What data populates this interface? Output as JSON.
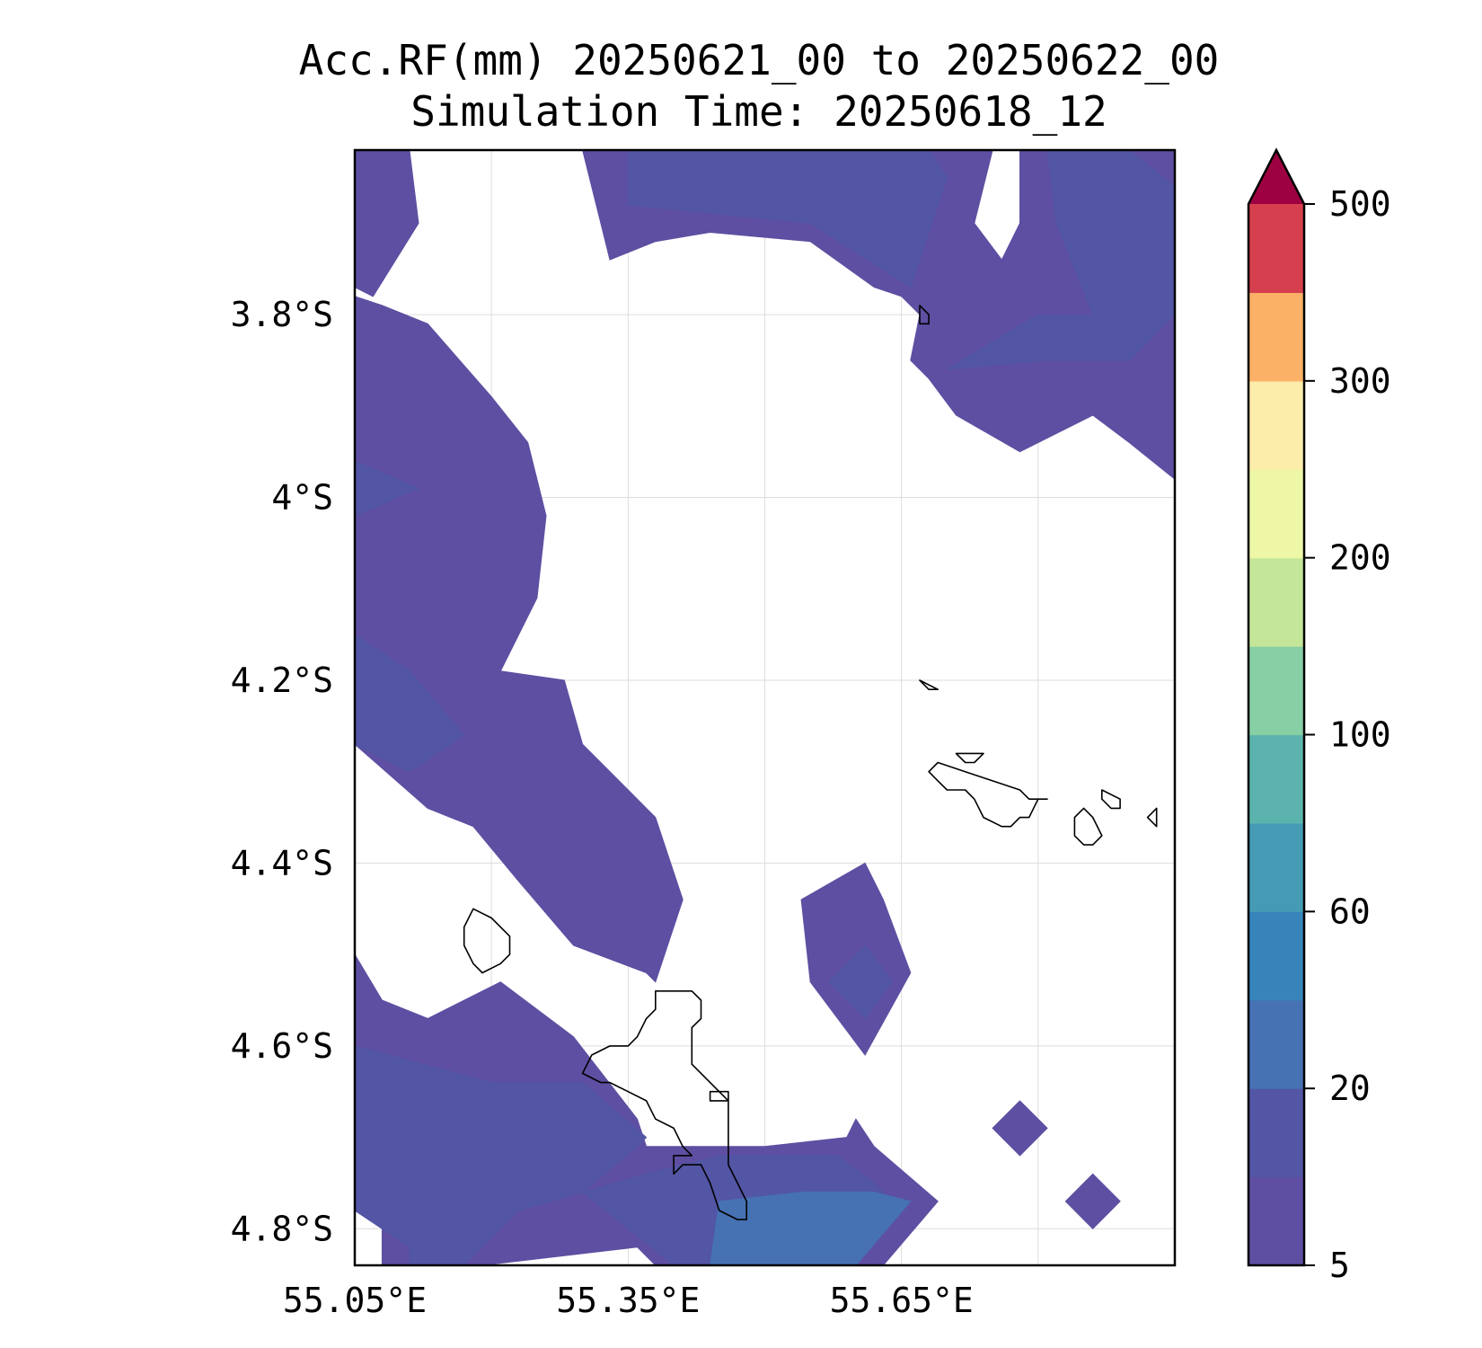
{
  "title_line1": "Acc.RF(mm) 20250621_00 to 20250622_00",
  "title_line2": "Simulation Time: 20250618_12",
  "chart_data": {
    "type": "filled-contour-map",
    "title": "Acc.RF(mm) 20250621_00 to 20250622_00",
    "subtitle": "Simulation Time: 20250618_12",
    "xlim": [
      55.05,
      55.95
    ],
    "ylim": [
      -4.84,
      -3.62
    ],
    "grid": true,
    "x_ticks": [
      {
        "value": 55.05,
        "label": "55.05°E"
      },
      {
        "value": 55.35,
        "label": "55.35°E"
      },
      {
        "value": 55.65,
        "label": "55.65°E"
      }
    ],
    "y_ticks": [
      {
        "value": -3.8,
        "label": "3.8°S"
      },
      {
        "value": -4.0,
        "label": "4°S"
      },
      {
        "value": -4.2,
        "label": "4.2°S"
      },
      {
        "value": -4.4,
        "label": "4.4°S"
      },
      {
        "value": -4.6,
        "label": "4.6°S"
      },
      {
        "value": -4.8,
        "label": "4.8°S"
      }
    ],
    "colorbar": {
      "levels": [
        5,
        10,
        20,
        40,
        60,
        80,
        100,
        150,
        200,
        250,
        300,
        400,
        500
      ],
      "labels": [
        {
          "level_index": 0,
          "label": "5"
        },
        {
          "level_index": 2,
          "label": "20"
        },
        {
          "level_index": 4,
          "label": "60"
        },
        {
          "level_index": 6,
          "label": "100"
        },
        {
          "level_index": 8,
          "label": "200"
        },
        {
          "level_index": 10,
          "label": "300"
        },
        {
          "level_index": 12,
          "label": "500"
        }
      ],
      "colors": [
        "#5e4fa2",
        "#5355a5",
        "#4671b3",
        "#3784bb",
        "#459ab4",
        "#5cb3ad",
        "#87cfa4",
        "#c4e699",
        "#eef7a6",
        "#fdedaa",
        "#fbb166",
        "#d6404e"
      ],
      "extend_color": "#9e0142",
      "extend": "max"
    },
    "regions": [
      {
        "level": 0,
        "lonlat": [
          [
            55.05,
            -3.62
          ],
          [
            55.11,
            -3.62
          ],
          [
            55.12,
            -3.7
          ],
          [
            55.07,
            -3.78
          ],
          [
            55.05,
            -3.77
          ]
        ]
      },
      {
        "level": 0,
        "lonlat": [
          [
            55.05,
            -3.96
          ],
          [
            55.05,
            -3.78
          ],
          [
            55.08,
            -3.79
          ],
          [
            55.13,
            -3.81
          ],
          [
            55.2,
            -3.89
          ],
          [
            55.24,
            -3.94
          ],
          [
            55.26,
            -4.02
          ],
          [
            55.25,
            -4.11
          ],
          [
            55.21,
            -4.19
          ],
          [
            55.28,
            -4.2
          ],
          [
            55.3,
            -4.27
          ],
          [
            55.35,
            -4.32
          ],
          [
            55.38,
            -4.35
          ],
          [
            55.41,
            -4.44
          ],
          [
            55.38,
            -4.53
          ],
          [
            55.37,
            -4.52
          ],
          [
            55.29,
            -4.49
          ],
          [
            55.23,
            -4.42
          ],
          [
            55.18,
            -4.36
          ],
          [
            55.13,
            -4.34
          ],
          [
            55.05,
            -4.27
          ],
          [
            55.05,
            -3.85
          ]
        ]
      },
      {
        "level": 1,
        "lonlat": [
          [
            55.05,
            -3.96
          ],
          [
            55.12,
            -3.99
          ],
          [
            55.05,
            -4.02
          ]
        ]
      },
      {
        "level": 1,
        "lonlat": [
          [
            55.05,
            -4.15
          ],
          [
            55.11,
            -4.19
          ],
          [
            55.17,
            -4.26
          ],
          [
            55.11,
            -4.3
          ],
          [
            55.05,
            -4.27
          ]
        ]
      },
      {
        "level": 0,
        "lonlat": [
          [
            55.05,
            -4.5
          ],
          [
            55.08,
            -4.55
          ],
          [
            55.13,
            -4.57
          ],
          [
            55.21,
            -4.53
          ],
          [
            55.29,
            -4.59
          ],
          [
            55.36,
            -4.68
          ],
          [
            55.37,
            -4.71
          ],
          [
            55.5,
            -4.71
          ],
          [
            55.59,
            -4.7
          ],
          [
            55.6,
            -4.68
          ],
          [
            55.62,
            -4.71
          ],
          [
            55.69,
            -4.77
          ],
          [
            55.63,
            -4.84
          ],
          [
            55.38,
            -4.84
          ],
          [
            55.36,
            -4.82
          ],
          [
            55.19,
            -4.84
          ],
          [
            55.08,
            -4.84
          ],
          [
            55.08,
            -4.78
          ],
          [
            55.05,
            -4.76
          ]
        ]
      },
      {
        "level": 1,
        "lonlat": [
          [
            55.05,
            -4.6
          ],
          [
            55.2,
            -4.64
          ],
          [
            55.3,
            -4.64
          ],
          [
            55.37,
            -4.7
          ],
          [
            55.36,
            -4.71
          ],
          [
            55.3,
            -4.76
          ],
          [
            55.23,
            -4.78
          ],
          [
            55.17,
            -4.84
          ],
          [
            55.11,
            -4.84
          ],
          [
            55.11,
            -4.82
          ],
          [
            55.05,
            -4.78
          ]
        ]
      },
      {
        "level": 1,
        "lonlat": [
          [
            55.3,
            -4.76
          ],
          [
            55.37,
            -4.74
          ],
          [
            55.45,
            -4.72
          ],
          [
            55.58,
            -4.72
          ],
          [
            55.62,
            -4.75
          ],
          [
            55.65,
            -4.78
          ],
          [
            55.6,
            -4.84
          ],
          [
            55.4,
            -4.84
          ]
        ]
      },
      {
        "level": 2,
        "lonlat": [
          [
            55.45,
            -4.77
          ],
          [
            55.54,
            -4.76
          ],
          [
            55.62,
            -4.76
          ],
          [
            55.66,
            -4.77
          ],
          [
            55.6,
            -4.84
          ],
          [
            55.44,
            -4.84
          ]
        ]
      },
      {
        "level": 0,
        "lonlat": [
          [
            55.54,
            -4.44
          ],
          [
            55.61,
            -4.4
          ],
          [
            55.63,
            -4.44
          ],
          [
            55.66,
            -4.52
          ],
          [
            55.61,
            -4.61
          ],
          [
            55.55,
            -4.53
          ]
        ]
      },
      {
        "level": 1,
        "lonlat": [
          [
            55.57,
            -4.53
          ],
          [
            55.61,
            -4.49
          ],
          [
            55.64,
            -4.53
          ],
          [
            55.61,
            -4.57
          ]
        ]
      },
      {
        "level": 0,
        "lonlat": [
          [
            55.75,
            -4.69
          ],
          [
            55.78,
            -4.66
          ],
          [
            55.81,
            -4.69
          ],
          [
            55.78,
            -4.72
          ]
        ]
      },
      {
        "level": 0,
        "lonlat": [
          [
            55.83,
            -4.77
          ],
          [
            55.86,
            -4.74
          ],
          [
            55.89,
            -4.77
          ],
          [
            55.86,
            -4.8
          ]
        ]
      },
      {
        "level": 0,
        "lonlat": [
          [
            55.3,
            -3.62
          ],
          [
            55.75,
            -3.62
          ],
          [
            55.73,
            -3.7
          ],
          [
            55.76,
            -3.74
          ],
          [
            55.78,
            -3.7
          ],
          [
            55.78,
            -3.62
          ],
          [
            55.95,
            -3.62
          ],
          [
            55.95,
            -3.98
          ],
          [
            55.9,
            -3.94
          ],
          [
            55.86,
            -3.91
          ],
          [
            55.78,
            -3.95
          ],
          [
            55.71,
            -3.91
          ],
          [
            55.68,
            -3.87
          ],
          [
            55.66,
            -3.85
          ],
          [
            55.67,
            -3.8
          ],
          [
            55.65,
            -3.78
          ],
          [
            55.62,
            -3.77
          ],
          [
            55.55,
            -3.72
          ],
          [
            55.44,
            -3.71
          ],
          [
            55.38,
            -3.72
          ],
          [
            55.33,
            -3.74
          ],
          [
            55.32,
            -3.7
          ]
        ]
      },
      {
        "level": 1,
        "lonlat": [
          [
            55.35,
            -3.62
          ],
          [
            55.68,
            -3.62
          ],
          [
            55.7,
            -3.65
          ],
          [
            55.66,
            -3.77
          ],
          [
            55.55,
            -3.7
          ],
          [
            55.35,
            -3.68
          ]
        ]
      },
      {
        "level": 1,
        "lonlat": [
          [
            55.81,
            -3.62
          ],
          [
            55.9,
            -3.62
          ],
          [
            55.95,
            -3.66
          ],
          [
            55.95,
            -3.8
          ],
          [
            55.9,
            -3.85
          ],
          [
            55.81,
            -3.85
          ],
          [
            55.7,
            -3.86
          ],
          [
            55.8,
            -3.8
          ],
          [
            55.86,
            -3.8
          ],
          [
            55.82,
            -3.7
          ]
        ]
      }
    ],
    "coastlines": [
      {
        "lonlat": [
          [
            55.41,
            -4.54
          ],
          [
            55.42,
            -4.54
          ],
          [
            55.43,
            -4.55
          ],
          [
            55.43,
            -4.57
          ],
          [
            55.42,
            -4.58
          ],
          [
            55.42,
            -4.6
          ],
          [
            55.42,
            -4.62
          ],
          [
            55.44,
            -4.64
          ],
          [
            55.46,
            -4.66
          ],
          [
            55.46,
            -4.68
          ],
          [
            55.46,
            -4.7
          ],
          [
            55.46,
            -4.72
          ],
          [
            55.46,
            -4.73
          ],
          [
            55.47,
            -4.75
          ],
          [
            55.48,
            -4.77
          ],
          [
            55.48,
            -4.79
          ],
          [
            55.47,
            -4.79
          ],
          [
            55.45,
            -4.78
          ],
          [
            55.44,
            -4.75
          ],
          [
            55.43,
            -4.73
          ],
          [
            55.41,
            -4.73
          ],
          [
            55.4,
            -4.74
          ],
          [
            55.4,
            -4.72
          ],
          [
            55.42,
            -4.72
          ],
          [
            55.41,
            -4.71
          ],
          [
            55.4,
            -4.69
          ],
          [
            55.38,
            -4.68
          ],
          [
            55.37,
            -4.66
          ],
          [
            55.35,
            -4.65
          ],
          [
            55.33,
            -4.64
          ],
          [
            55.32,
            -4.64
          ],
          [
            55.3,
            -4.63
          ],
          [
            55.31,
            -4.61
          ],
          [
            55.33,
            -4.6
          ],
          [
            55.35,
            -4.6
          ],
          [
            55.36,
            -4.59
          ],
          [
            55.37,
            -4.57
          ],
          [
            55.38,
            -4.56
          ],
          [
            55.38,
            -4.54
          ],
          [
            55.4,
            -4.54
          ]
        ]
      },
      {
        "lonlat": [
          [
            55.18,
            -4.45
          ],
          [
            55.2,
            -4.46
          ],
          [
            55.22,
            -4.48
          ],
          [
            55.22,
            -4.5
          ],
          [
            55.21,
            -4.51
          ],
          [
            55.19,
            -4.52
          ],
          [
            55.18,
            -4.51
          ],
          [
            55.17,
            -4.49
          ],
          [
            55.17,
            -4.47
          ]
        ]
      },
      {
        "lonlat": [
          [
            55.69,
            -4.29
          ],
          [
            55.72,
            -4.3
          ],
          [
            55.75,
            -4.31
          ],
          [
            55.78,
            -4.32
          ],
          [
            55.79,
            -4.33
          ],
          [
            55.81,
            -4.33
          ],
          [
            55.8,
            -4.33
          ],
          [
            55.79,
            -4.35
          ],
          [
            55.78,
            -4.35
          ],
          [
            55.77,
            -4.36
          ],
          [
            55.76,
            -4.36
          ],
          [
            55.74,
            -4.35
          ],
          [
            55.73,
            -4.33
          ],
          [
            55.72,
            -4.32
          ],
          [
            55.7,
            -4.32
          ],
          [
            55.69,
            -4.31
          ],
          [
            55.68,
            -4.3
          ]
        ]
      },
      {
        "lonlat": [
          [
            55.71,
            -4.28
          ],
          [
            55.74,
            -4.28
          ],
          [
            55.73,
            -4.29
          ],
          [
            55.72,
            -4.29
          ]
        ]
      },
      {
        "lonlat": [
          [
            55.85,
            -4.34
          ],
          [
            55.86,
            -4.35
          ],
          [
            55.87,
            -4.37
          ],
          [
            55.86,
            -4.38
          ],
          [
            55.85,
            -4.38
          ],
          [
            55.84,
            -4.37
          ],
          [
            55.84,
            -4.35
          ]
        ]
      },
      {
        "lonlat": [
          [
            55.87,
            -4.32
          ],
          [
            55.89,
            -4.33
          ],
          [
            55.89,
            -4.34
          ],
          [
            55.88,
            -4.34
          ],
          [
            55.87,
            -4.33
          ]
        ]
      },
      {
        "lonlat": [
          [
            55.67,
            -3.79
          ],
          [
            55.68,
            -3.8
          ],
          [
            55.68,
            -3.81
          ],
          [
            55.67,
            -3.81
          ]
        ]
      },
      {
        "lonlat": [
          [
            55.44,
            -4.65
          ],
          [
            55.46,
            -4.65
          ],
          [
            55.46,
            -4.66
          ],
          [
            55.44,
            -4.66
          ]
        ]
      },
      {
        "lonlat": [
          [
            55.67,
            -4.2
          ],
          [
            55.69,
            -4.21
          ],
          [
            55.68,
            -4.21
          ]
        ]
      },
      {
        "lonlat": [
          [
            55.92,
            -4.35
          ],
          [
            55.93,
            -4.34
          ],
          [
            55.93,
            -4.36
          ]
        ]
      }
    ]
  }
}
